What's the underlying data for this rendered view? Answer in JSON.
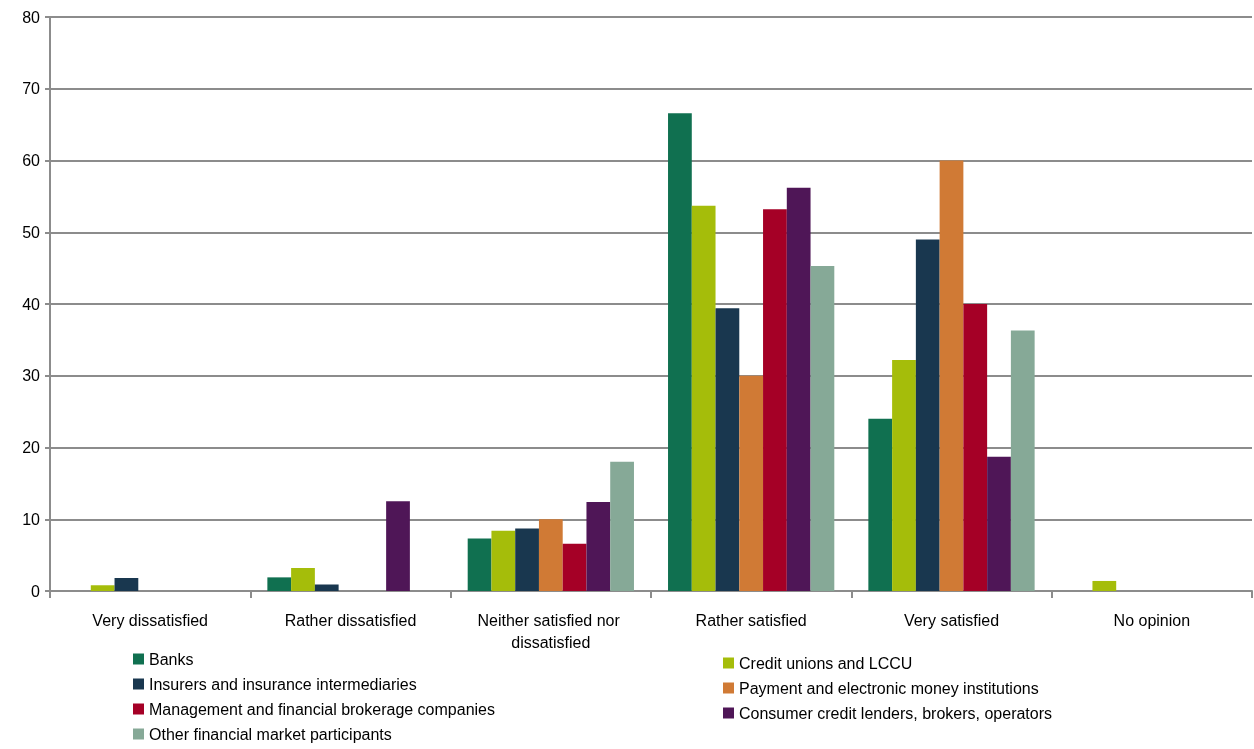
{
  "chart_data": {
    "type": "bar",
    "categories": [
      "Very dissatisfied",
      "Rather dissatisfied",
      "Neither satisfied nor dissatisfied",
      "Rather satisfied",
      "Very satisfied",
      "No opinion"
    ],
    "series": [
      {
        "name": "Banks",
        "color": "#107050",
        "values": [
          0,
          1.9,
          7.3,
          66.6,
          24.0,
          0
        ]
      },
      {
        "name": "Credit unions and LCCU",
        "color": "#a5bd0a",
        "values": [
          0.8,
          3.2,
          8.4,
          53.7,
          32.2,
          1.4
        ]
      },
      {
        "name": "Insurers and insurance intermediaries",
        "color": "#19374f",
        "values": [
          1.8,
          0.9,
          8.7,
          39.4,
          49.0,
          0
        ]
      },
      {
        "name": "Payment and electronic money institutions",
        "color": "#d07a35",
        "values": [
          0,
          0,
          10.0,
          30.0,
          60.0,
          0
        ]
      },
      {
        "name": "Management and financial brokerage companies",
        "color": "#a50026",
        "values": [
          0,
          0,
          6.6,
          53.2,
          40.0,
          0
        ]
      },
      {
        "name": "Consumer credit lenders, brokers, operators",
        "color": "#4f1657",
        "values": [
          0,
          12.5,
          12.4,
          56.2,
          18.7,
          0
        ]
      },
      {
        "name": "Other financial market participants",
        "color": "#86a997",
        "values": [
          0,
          0,
          18.0,
          45.3,
          36.3,
          0
        ]
      }
    ],
    "ylim": [
      0,
      80
    ],
    "yticks": [
      0,
      10,
      20,
      30,
      40,
      50,
      60,
      70,
      80
    ],
    "grid": "y",
    "legend": "bottom"
  }
}
